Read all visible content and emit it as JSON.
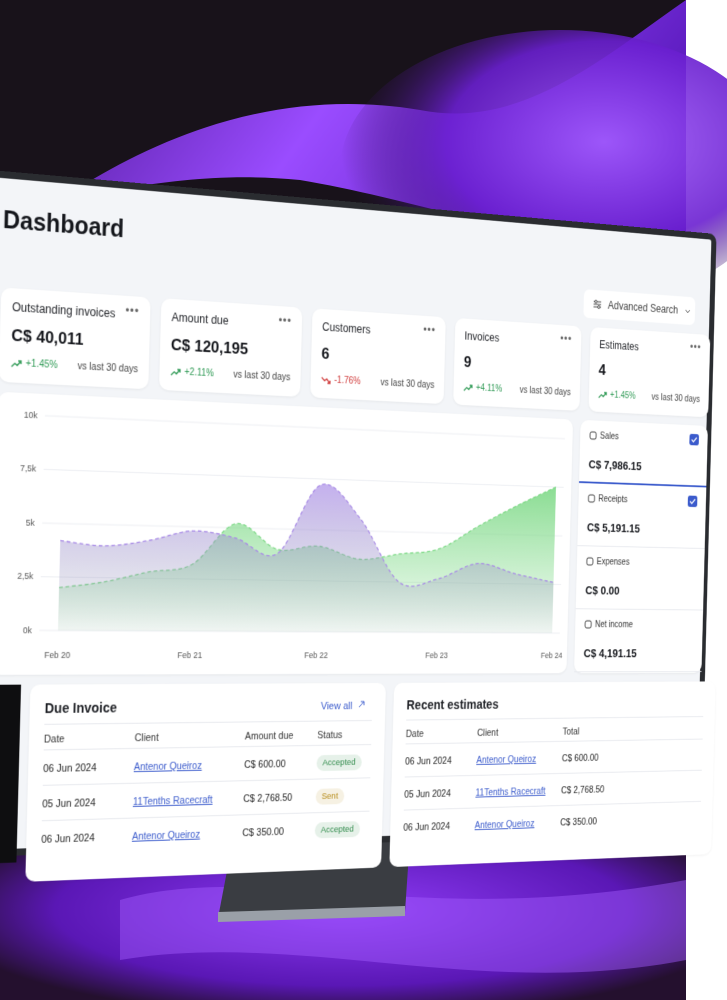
{
  "header": {
    "title": "Dashboard",
    "search": "Advanced Search"
  },
  "stats": [
    {
      "title": "Outstanding invoices",
      "value": "C$ 40,011",
      "change": "+1.45%",
      "trend": "up",
      "period": "vs last 30 days"
    },
    {
      "title": "Amount due",
      "value": "C$ 120,195",
      "change": "+2.11%",
      "trend": "up",
      "period": "vs last 30 days"
    },
    {
      "title": "Customers",
      "value": "6",
      "change": "-1.76%",
      "trend": "down",
      "period": "vs last 30 days"
    },
    {
      "title": "Invoices",
      "value": "9",
      "change": "+4.11%",
      "trend": "up",
      "period": "vs last 30 days"
    },
    {
      "title": "Estimates",
      "value": "4",
      "change": "+1.45%",
      "trend": "up",
      "period": "vs last 30 days"
    }
  ],
  "chart_data": {
    "type": "area",
    "categories": [
      "Feb 20",
      null,
      null,
      "Feb 21",
      null,
      null,
      "Feb 22",
      null,
      null,
      "Feb 23",
      null,
      null,
      "Feb 24"
    ],
    "series": [
      {
        "color": "#7ed987",
        "values": [
          2000,
          2300,
          2800,
          3200,
          5200,
          4000,
          4200,
          3600,
          3900,
          4200,
          5400,
          6500,
          7500
        ]
      },
      {
        "color": "#a88ae6",
        "values": [
          4200,
          4000,
          4300,
          4800,
          4500,
          3800,
          7200,
          5600,
          2500,
          2700,
          3500,
          3000,
          2600
        ]
      }
    ],
    "ylim": [
      0,
      10000
    ],
    "yticks": [
      {
        "value": 0,
        "label": "0k"
      },
      {
        "value": 2500,
        "label": "2,5k"
      },
      {
        "value": 5000,
        "label": "5k"
      },
      {
        "value": 7500,
        "label": "7,5k"
      },
      {
        "value": 10000,
        "label": "10k"
      }
    ],
    "grid": true
  },
  "summary": [
    {
      "label": "Sales",
      "value": "C$ 7,986.15",
      "checked": true
    },
    {
      "label": "Receipts",
      "value": "C$ 5,191.15",
      "checked": true
    },
    {
      "label": "Expenses",
      "value": "C$ 0.00",
      "checked": false
    },
    {
      "label": "Net income",
      "value": "C$ 4,191.15",
      "checked": false
    }
  ],
  "due_invoice": {
    "title": "Due Invoice",
    "link": "View all",
    "columns": [
      "Date",
      "Client",
      "Amount due",
      "Status"
    ],
    "rows": [
      {
        "date": "06 Jun 2024",
        "client": "Antenor Queiroz",
        "amount": "C$ 600.00",
        "status": "Accepted",
        "status_color": "#2f8a4a"
      },
      {
        "date": "05 Jun 2024",
        "client": "11Tenths Racecraft",
        "amount": "C$ 2,768.50",
        "status": "Sent",
        "status_color": "#b58a16"
      },
      {
        "date": "06 Jun 2024",
        "client": "Antenor Queiroz",
        "amount": "C$ 350.00",
        "status": "Accepted",
        "status_color": "#2f8a4a"
      }
    ]
  },
  "recent_estimates": {
    "title": "Recent estimates",
    "columns": [
      "Date",
      "Client",
      "Total"
    ],
    "rows": [
      {
        "date": "06 Jun 2024",
        "client": "Antenor Queiroz",
        "amount": "C$ 600.00"
      },
      {
        "date": "05 Jun 2024",
        "client": "11Tenths Racecraft",
        "amount": "C$ 2,768.50"
      },
      {
        "date": "06 Jun 2024",
        "client": "Antenor Queiroz",
        "amount": "C$ 350.00"
      }
    ]
  }
}
